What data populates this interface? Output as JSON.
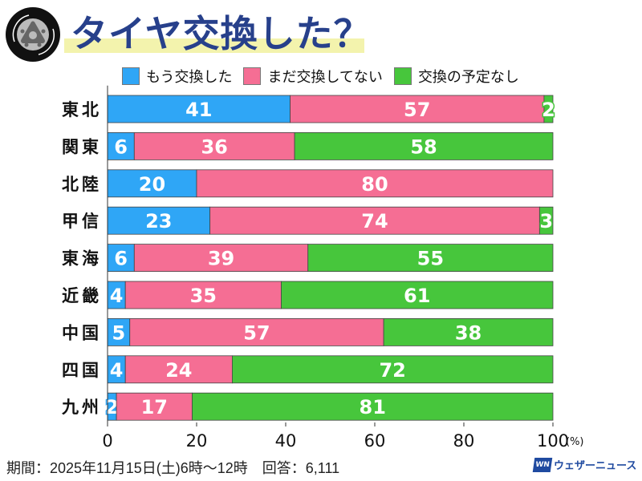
{
  "title": "タイヤ交換した？",
  "footer": "期間：2025年11月15日(土)6時～12時　回答：6,111",
  "brand": {
    "mark": "WN",
    "name": "ウェザーニュース"
  },
  "chart_data": {
    "type": "bar",
    "orientation": "horizontal-stacked",
    "categories": [
      "東北",
      "関東",
      "北陸",
      "甲信",
      "東海",
      "近畿",
      "中国",
      "四国",
      "九州"
    ],
    "series": [
      {
        "name": "もう交換した",
        "color": "#2fa6f6",
        "values": [
          41,
          6,
          20,
          23,
          6,
          4,
          5,
          4,
          2
        ]
      },
      {
        "name": "まだ交換してない",
        "color": "#f56e94",
        "values": [
          57,
          36,
          80,
          74,
          39,
          35,
          57,
          24,
          17
        ]
      },
      {
        "name": "交換の予定なし",
        "color": "#47c63c",
        "values": [
          2,
          58,
          0,
          3,
          55,
          61,
          38,
          72,
          81
        ]
      }
    ],
    "xlim": [
      0,
      100
    ],
    "xticks": [
      "0",
      "20",
      "40",
      "60",
      "80",
      "100"
    ],
    "xunit": "(%)",
    "legend": "top"
  }
}
